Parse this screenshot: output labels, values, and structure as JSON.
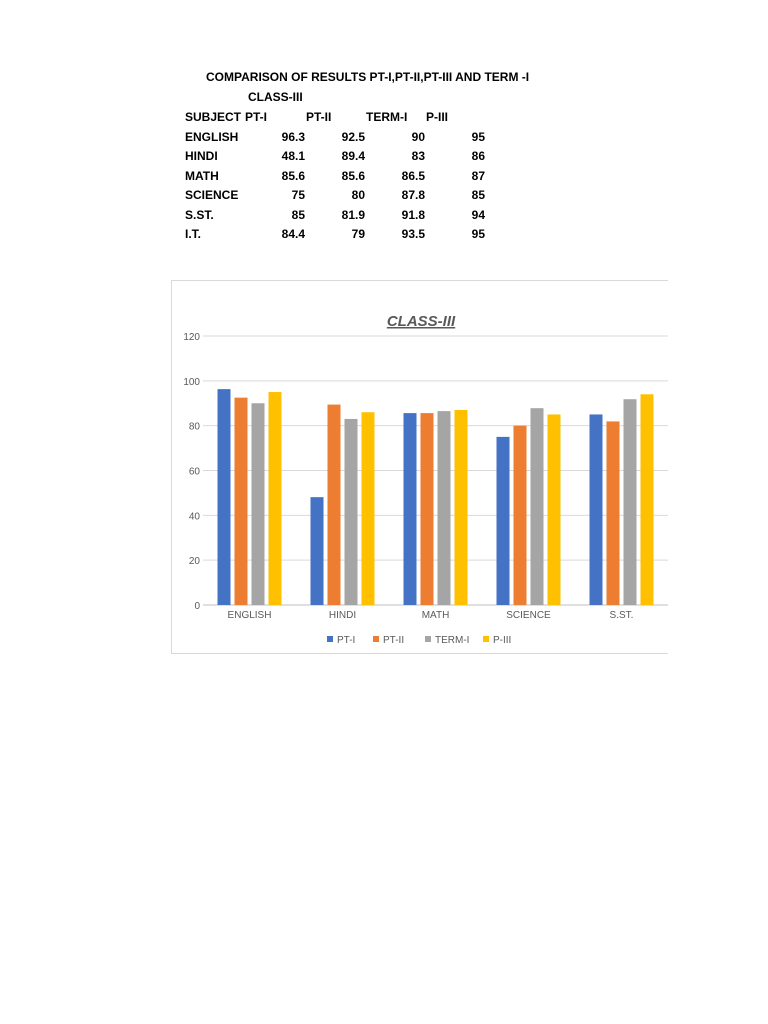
{
  "document": {
    "title": "COMPARISON OF RESULTS PT-I,PT-II,PT-III AND TERM -I",
    "subtitle": "CLASS-III"
  },
  "table": {
    "headers": [
      "SUBJECT",
      "PT-I",
      "PT-II",
      "TERM-I",
      "P-III"
    ],
    "rows": [
      [
        "ENGLISH",
        "96.3",
        "92.5",
        "90",
        "95"
      ],
      [
        "HINDI",
        "48.1",
        "89.4",
        "83",
        "86"
      ],
      [
        "MATH",
        "85.6",
        "85.6",
        "86.5",
        "87"
      ],
      [
        "SCIENCE",
        "75",
        "80",
        "87.8",
        "85"
      ],
      [
        "S.ST.",
        "85",
        "81.9",
        "91.8",
        "94"
      ],
      [
        "I.T.",
        "84.4",
        "79",
        "93.5",
        "95"
      ]
    ]
  },
  "chart_data": {
    "type": "bar",
    "title": "CLASS-III",
    "categories": [
      "ENGLISH",
      "HINDI",
      "MATH",
      "SCIENCE",
      "S.ST."
    ],
    "series": [
      {
        "name": "PT-I",
        "color": "#4472c4",
        "values": [
          96.3,
          48.1,
          85.6,
          75,
          85
        ]
      },
      {
        "name": "PT-II",
        "color": "#ed7d31",
        "values": [
          92.5,
          89.4,
          85.6,
          80,
          81.9
        ]
      },
      {
        "name": "TERM-I",
        "color": "#a5a5a5",
        "values": [
          90,
          83,
          86.5,
          87.8,
          91.8
        ]
      },
      {
        "name": "P-III",
        "color": "#ffc000",
        "values": [
          95,
          86,
          87,
          85,
          94
        ]
      }
    ],
    "ylim": [
      0,
      120
    ],
    "yticks": [
      "0",
      "20",
      "40",
      "60",
      "80",
      "100",
      "120"
    ],
    "grid": true,
    "legend": "bottom"
  }
}
